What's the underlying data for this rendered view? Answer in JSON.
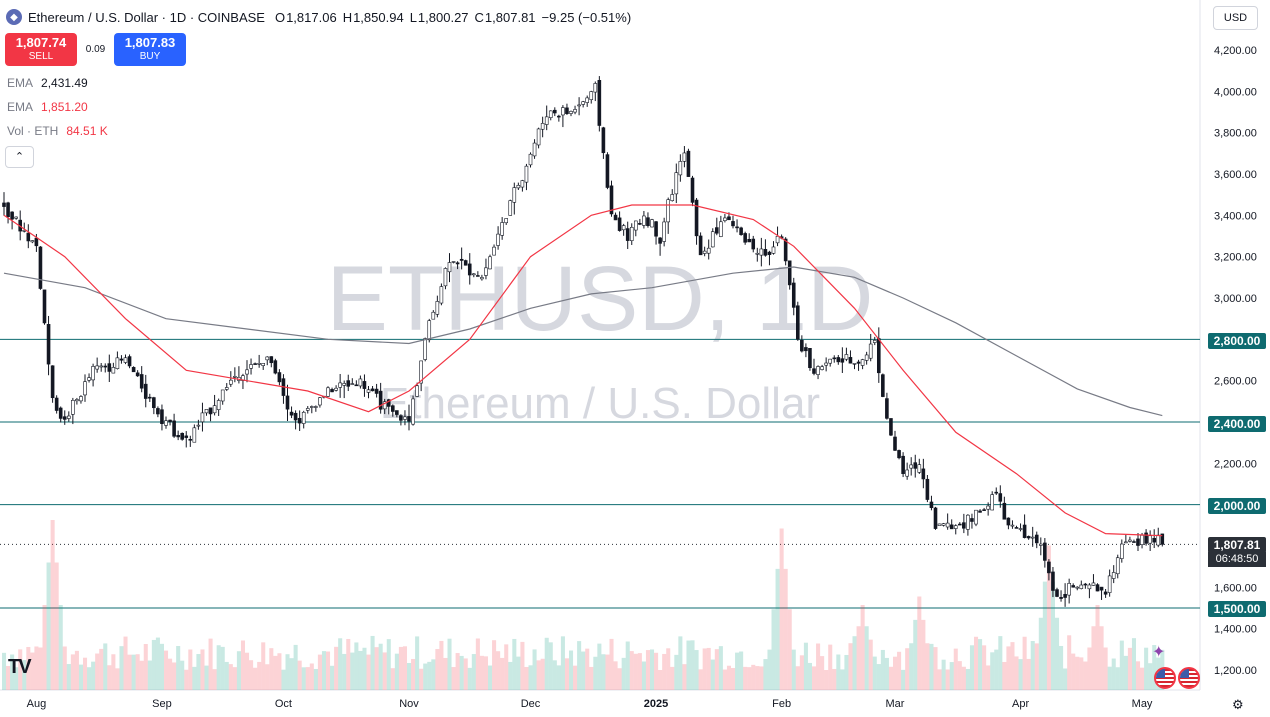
{
  "header": {
    "logo_icon": "ethereum-icon",
    "symbol": "Ethereum / U.S. Dollar · 1D · COINBASE",
    "o_key": "O",
    "o_val": "1,817.06",
    "h_key": "H",
    "h_val": "1,850.94",
    "l_key": "L",
    "l_val": "1,800.27",
    "c_key": "C",
    "c_val": "1,807.81",
    "change": "−9.25 (−0.51%)"
  },
  "trade": {
    "sell_price": "1,807.74",
    "sell_label": "SELL",
    "spread": "0.09",
    "buy_price": "1,807.83",
    "buy_label": "BUY"
  },
  "indicators": [
    {
      "name": "EMA",
      "value": "2,431.49",
      "color": "#787b86"
    },
    {
      "name": "EMA",
      "value": "1,851.20",
      "color": "#f23645"
    },
    {
      "name": "Vol · ETH",
      "value": "84.51 K",
      "color": "#f23645"
    }
  ],
  "collapse_icon": "chevron-up-icon",
  "currency": "USD",
  "watermark": {
    "title": "ETHUSD, 1D",
    "subtitle": "Ethereum / U.S. Dollar"
  },
  "current": {
    "price": "1,807.81",
    "countdown": "06:48:50"
  },
  "levels": [
    {
      "label": "2,800.00",
      "value": 2800
    },
    {
      "label": "2,400.00",
      "value": 2400
    },
    {
      "label": "2,000.00",
      "value": 2000
    },
    {
      "label": "1,500.00",
      "value": 1500
    }
  ],
  "colors": {
    "up": "#089981",
    "down": "#f23645",
    "level": "#0e6b70",
    "ema_fast": "#f23645",
    "ema_slow": "#787b86"
  },
  "chart_data": {
    "type": "candlestick",
    "title": "ETHUSD, 1D",
    "ylim": [
      1100,
      4300
    ],
    "y_ticks": [
      4200,
      4000,
      3800,
      3600,
      3400,
      3200,
      3000,
      2800,
      2600,
      2400,
      2200,
      2000,
      1800,
      1600,
      1400,
      1200
    ],
    "y_tick_labels": [
      "4,200.00",
      "4,000.00",
      "3,800.00",
      "3,600.00",
      "3,400.00",
      "3,200.00",
      "3,000.00",
      "2,800.00",
      "2,600.00",
      "2,400.00",
      "2,200.00",
      "2,000.00",
      "1,800.00",
      "1,600.00",
      "1,400.00",
      "1,200.00"
    ],
    "x_labels": [
      "Aug",
      "Sep",
      "Oct",
      "Nov",
      "Dec",
      "2025",
      "Feb",
      "Mar",
      "Apr",
      "May"
    ],
    "x_label_bars": [
      8,
      39,
      69,
      100,
      130,
      161,
      192,
      220,
      251,
      281
    ],
    "price_path": [
      [
        0,
        3450
      ],
      [
        8,
        3250
      ],
      [
        12,
        2500
      ],
      [
        15,
        2400
      ],
      [
        22,
        2650
      ],
      [
        30,
        2700
      ],
      [
        38,
        2450
      ],
      [
        45,
        2300
      ],
      [
        52,
        2500
      ],
      [
        58,
        2650
      ],
      [
        66,
        2700
      ],
      [
        72,
        2400
      ],
      [
        80,
        2550
      ],
      [
        88,
        2600
      ],
      [
        95,
        2450
      ],
      [
        100,
        2400
      ],
      [
        104,
        2800
      ],
      [
        110,
        3200
      ],
      [
        118,
        3100
      ],
      [
        124,
        3400
      ],
      [
        130,
        3700
      ],
      [
        134,
        3900
      ],
      [
        140,
        3900
      ],
      [
        146,
        4000
      ],
      [
        150,
        3400
      ],
      [
        154,
        3300
      ],
      [
        158,
        3400
      ],
      [
        162,
        3300
      ],
      [
        166,
        3600
      ],
      [
        168,
        3700
      ],
      [
        172,
        3200
      ],
      [
        178,
        3400
      ],
      [
        182,
        3300
      ],
      [
        188,
        3200
      ],
      [
        192,
        3300
      ],
      [
        196,
        2800
      ],
      [
        200,
        2650
      ],
      [
        205,
        2700
      ],
      [
        212,
        2700
      ],
      [
        215,
        2800
      ],
      [
        218,
        2400
      ],
      [
        222,
        2150
      ],
      [
        226,
        2200
      ],
      [
        230,
        1900
      ],
      [
        235,
        1900
      ],
      [
        240,
        1950
      ],
      [
        245,
        2050
      ],
      [
        248,
        1900
      ],
      [
        252,
        1850
      ],
      [
        256,
        1800
      ],
      [
        260,
        1550
      ],
      [
        263,
        1600
      ],
      [
        268,
        1600
      ],
      [
        272,
        1580
      ],
      [
        276,
        1800
      ],
      [
        280,
        1820
      ],
      [
        284,
        1840
      ],
      [
        286,
        1808
      ]
    ],
    "ema_fast": [
      [
        0,
        3400
      ],
      [
        15,
        3200
      ],
      [
        30,
        2900
      ],
      [
        45,
        2650
      ],
      [
        60,
        2600
      ],
      [
        75,
        2550
      ],
      [
        90,
        2450
      ],
      [
        100,
        2550
      ],
      [
        115,
        2800
      ],
      [
        130,
        3200
      ],
      [
        145,
        3400
      ],
      [
        155,
        3450
      ],
      [
        170,
        3450
      ],
      [
        185,
        3380
      ],
      [
        195,
        3250
      ],
      [
        210,
        2950
      ],
      [
        222,
        2650
      ],
      [
        235,
        2350
      ],
      [
        250,
        2150
      ],
      [
        262,
        1960
      ],
      [
        272,
        1860
      ],
      [
        286,
        1850
      ]
    ],
    "ema_slow": [
      [
        0,
        3120
      ],
      [
        20,
        3050
      ],
      [
        40,
        2900
      ],
      [
        60,
        2850
      ],
      [
        80,
        2800
      ],
      [
        100,
        2780
      ],
      [
        115,
        2850
      ],
      [
        130,
        2950
      ],
      [
        145,
        3020
      ],
      [
        160,
        3050
      ],
      [
        180,
        3120
      ],
      [
        195,
        3150
      ],
      [
        210,
        3100
      ],
      [
        222,
        3000
      ],
      [
        235,
        2880
      ],
      [
        250,
        2720
      ],
      [
        265,
        2560
      ],
      [
        278,
        2470
      ],
      [
        286,
        2431
      ]
    ],
    "volume_spikes": [
      [
        12,
        1.0
      ],
      [
        192,
        0.95
      ],
      [
        258,
        0.85
      ],
      [
        270,
        0.5
      ],
      [
        212,
        0.5
      ],
      [
        226,
        0.55
      ]
    ]
  }
}
